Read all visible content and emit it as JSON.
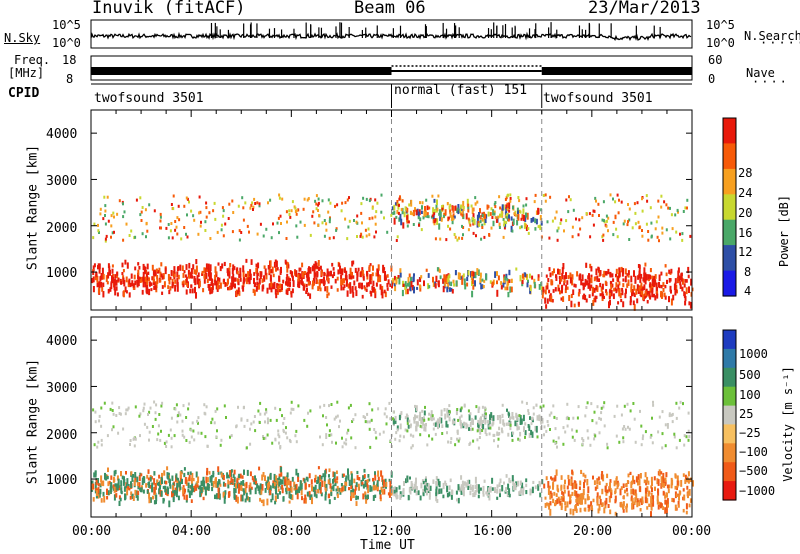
{
  "header": {
    "station": "Inuvik (fitACF)",
    "beam": "Beam 06",
    "date": "23/Mar/2013"
  },
  "noise_panel": {
    "left_label": "N.Sky",
    "right_label": "N.Search",
    "left_ticks": [
      "10^5",
      "10^0"
    ],
    "right_ticks": [
      "10^5",
      "10^0"
    ]
  },
  "freq_panel": {
    "left_label_1": "Freq.",
    "left_label_2": "[MHz]",
    "left_ticks": [
      "18",
      "8"
    ],
    "right_label": "Nave",
    "right_ticks": [
      "60",
      "0"
    ]
  },
  "cpid_panel": {
    "label": "CPID",
    "programs": [
      {
        "name": "twofsound 3501",
        "start": 0,
        "end": 12
      },
      {
        "name": "normal (fast) 151",
        "start": 12,
        "end": 18
      },
      {
        "name": "twofsound 3501",
        "start": 18,
        "end": 24
      }
    ]
  },
  "chart_data": [
    {
      "type": "heatmap",
      "title": "Power",
      "ylabel": "Slant Range [km]",
      "ylim": [
        180,
        4500
      ],
      "yticks": [
        "4000",
        "3000",
        "2000",
        "1000"
      ],
      "xlim": [
        0,
        24
      ],
      "colorbar": {
        "label": "Power [dB]",
        "ticks": [
          "28",
          "24",
          "20",
          "16",
          "12",
          "8",
          "4"
        ],
        "colors": [
          "#e8190a",
          "#f75a08",
          "#f7a020",
          "#c8d830",
          "#4aa868",
          "#2e4fa6",
          "#1a1ae6"
        ]
      }
    },
    {
      "type": "heatmap",
      "title": "Velocity",
      "ylabel": "Slant Range [km]",
      "xlabel": "Time UT",
      "ylim": [
        180,
        4500
      ],
      "yticks": [
        "4000",
        "3000",
        "2000",
        "1000"
      ],
      "xticks": [
        "00:00",
        "04:00",
        "08:00",
        "12:00",
        "16:00",
        "20:00",
        "00:00"
      ],
      "xlim": [
        0,
        24
      ],
      "colorbar": {
        "label": "Velocity [m s⁻¹]",
        "ticks": [
          "1000",
          "500",
          "100",
          "25",
          "−25",
          "−100",
          "−500",
          "−1000"
        ],
        "colors": [
          "#1e3cc0",
          "#2f7aa8",
          "#3a8f64",
          "#6cc03a",
          "#c8c8c0",
          "#f7c060",
          "#f08c30",
          "#f05a18",
          "#e81a10"
        ]
      }
    }
  ]
}
